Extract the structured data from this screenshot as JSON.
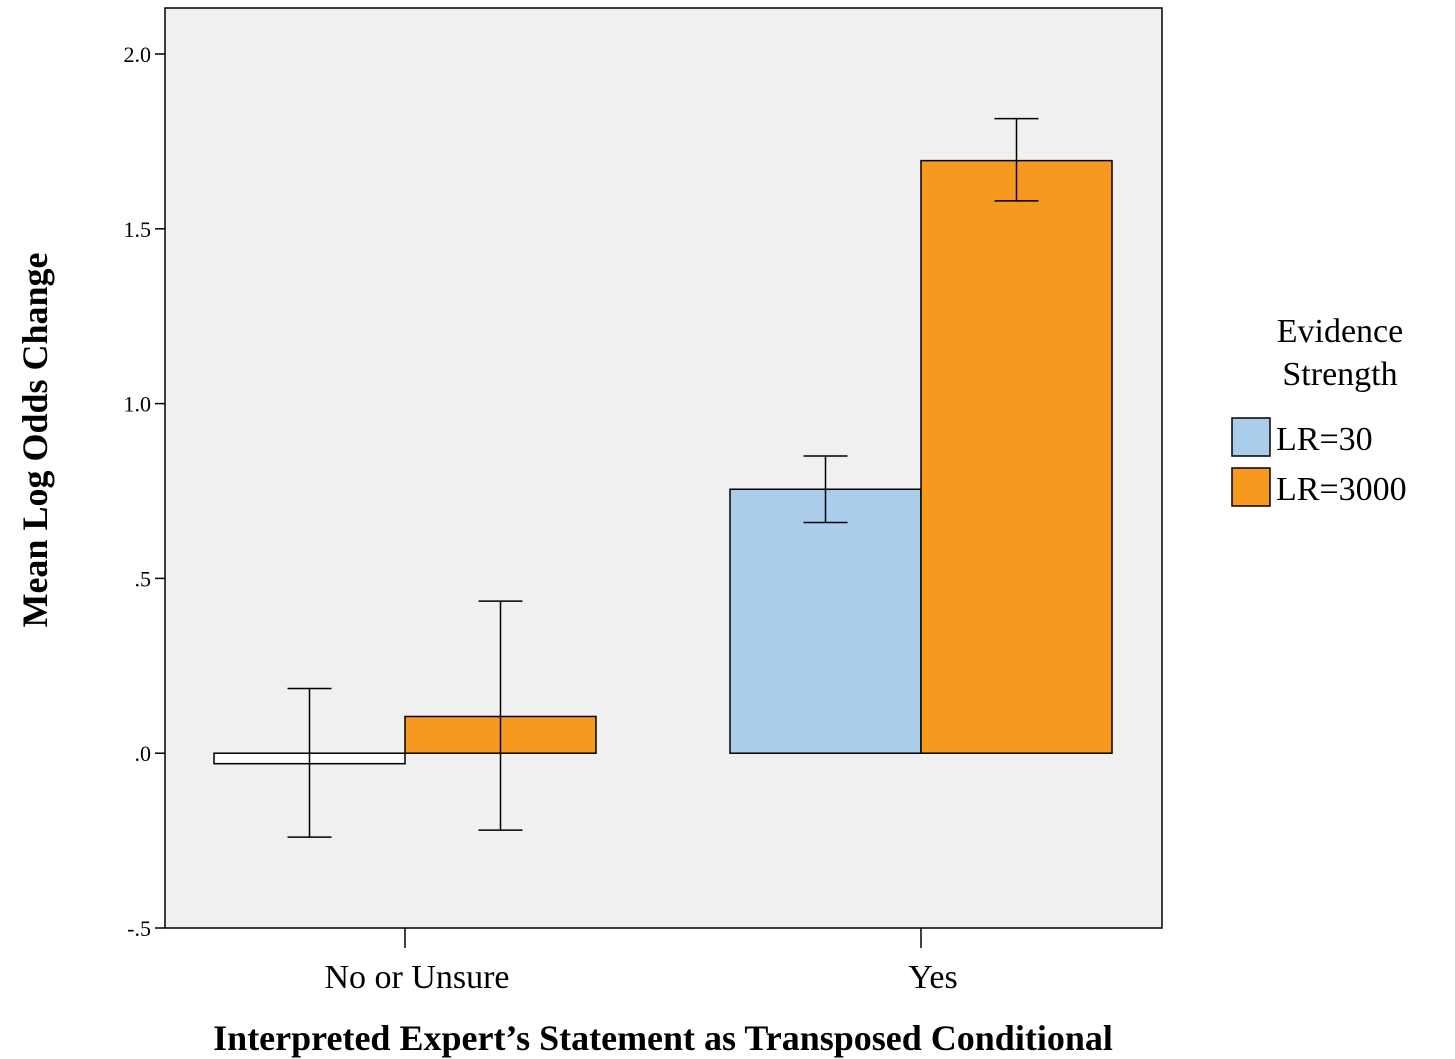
{
  "chart_data": {
    "type": "bar",
    "title": "",
    "xlabel": "Interpreted Expert’s Statement as Transposed Conditional",
    "ylabel": "Mean Log Odds Change",
    "categories": [
      "No or Unsure",
      "Yes"
    ],
    "y_ticks": [
      -0.5,
      0.0,
      0.5,
      1.0,
      1.5,
      2.0
    ],
    "y_tick_labels": [
      "-.5",
      ".0",
      ".5",
      "1.0",
      "1.5",
      "2.0"
    ],
    "ylim": [
      -0.5,
      2.0
    ],
    "grid": false,
    "legend": {
      "title_lines": [
        "Evidence",
        "Strength"
      ],
      "placement": "right"
    },
    "series": [
      {
        "name": "LR=30",
        "color": "#abcdec",
        "values": [
          -0.03,
          0.755
        ],
        "error_low": [
          -0.24,
          0.66
        ],
        "error_high": [
          0.185,
          0.85
        ]
      },
      {
        "name": "LR=3000",
        "color": "#f7991f",
        "values": [
          0.105,
          1.695
        ],
        "error_low": [
          -0.22,
          1.58
        ],
        "error_high": [
          0.435,
          1.815
        ]
      }
    ],
    "colors": {
      "plot_background": "#f0f0f0",
      "axis": "#000000"
    }
  }
}
